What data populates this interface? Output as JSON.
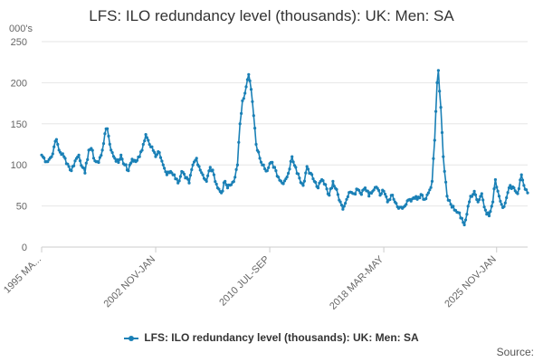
{
  "chart_data": {
    "type": "line",
    "title": "LFS: ILO redundancy level (thousands): UK: Men: SA",
    "ylabel": "000's",
    "xlabel": "",
    "ylim": [
      0,
      250
    ],
    "y_ticks": [
      0,
      50,
      100,
      150,
      200,
      250
    ],
    "x_tick_labels": [
      "1995 MA...",
      "2002 NOV-JAN",
      "2010 JUL-SEP",
      "2018 MAR-MAY",
      "2025 NOV-JAN"
    ],
    "x_tick_index": [
      0,
      92,
      184,
      276,
      367
    ],
    "legend_position": "bottom",
    "series_color": "#1a80b6",
    "source_label": "Source:",
    "series": [
      {
        "name": "LFS: ILO redundancy level (thousands): UK: Men: SA",
        "keypoints": [
          [
            0,
            112
          ],
          [
            4,
            104
          ],
          [
            8,
            110
          ],
          [
            10,
            122
          ],
          [
            12,
            131
          ],
          [
            14,
            118
          ],
          [
            18,
            110
          ],
          [
            22,
            98
          ],
          [
            24,
            93
          ],
          [
            27,
            105
          ],
          [
            30,
            112
          ],
          [
            33,
            97
          ],
          [
            35,
            90
          ],
          [
            38,
            118
          ],
          [
            40,
            120
          ],
          [
            43,
            105
          ],
          [
            46,
            103
          ],
          [
            49,
            118
          ],
          [
            51,
            138
          ],
          [
            53,
            144
          ],
          [
            56,
            118
          ],
          [
            59,
            108
          ],
          [
            62,
            103
          ],
          [
            64,
            112
          ],
          [
            67,
            100
          ],
          [
            70,
            93
          ],
          [
            73,
            107
          ],
          [
            76,
            104
          ],
          [
            79,
            110
          ],
          [
            82,
            125
          ],
          [
            84,
            137
          ],
          [
            86,
            130
          ],
          [
            89,
            122
          ],
          [
            92,
            110
          ],
          [
            95,
            115
          ],
          [
            98,
            100
          ],
          [
            101,
            88
          ],
          [
            104,
            92
          ],
          [
            107,
            88
          ],
          [
            110,
            78
          ],
          [
            113,
            92
          ],
          [
            116,
            84
          ],
          [
            119,
            78
          ],
          [
            122,
            100
          ],
          [
            125,
            108
          ],
          [
            127,
            98
          ],
          [
            130,
            88
          ],
          [
            133,
            80
          ],
          [
            136,
            97
          ],
          [
            139,
            88
          ],
          [
            142,
            72
          ],
          [
            145,
            66
          ],
          [
            148,
            80
          ],
          [
            150,
            72
          ],
          [
            153,
            76
          ],
          [
            156,
            85
          ],
          [
            158,
            100
          ],
          [
            160,
            150
          ],
          [
            162,
            178
          ],
          [
            165,
            195
          ],
          [
            167,
            210
          ],
          [
            169,
            192
          ],
          [
            171,
            160
          ],
          [
            173,
            125
          ],
          [
            176,
            108
          ],
          [
            179,
            100
          ],
          [
            182,
            93
          ],
          [
            185,
            103
          ],
          [
            188,
            97
          ],
          [
            191,
            85
          ],
          [
            194,
            78
          ],
          [
            197,
            83
          ],
          [
            200,
            95
          ],
          [
            202,
            110
          ],
          [
            205,
            97
          ],
          [
            208,
            84
          ],
          [
            211,
            75
          ],
          [
            214,
            98
          ],
          [
            217,
            90
          ],
          [
            220,
            80
          ],
          [
            223,
            72
          ],
          [
            226,
            82
          ],
          [
            229,
            76
          ],
          [
            232,
            63
          ],
          [
            235,
            80
          ],
          [
            238,
            70
          ],
          [
            241,
            55
          ],
          [
            243,
            46
          ],
          [
            246,
            58
          ],
          [
            249,
            67
          ],
          [
            252,
            65
          ],
          [
            255,
            70
          ],
          [
            258,
            64
          ],
          [
            261,
            72
          ],
          [
            264,
            62
          ],
          [
            267,
            68
          ],
          [
            270,
            73
          ],
          [
            273,
            63
          ],
          [
            276,
            68
          ],
          [
            279,
            55
          ],
          [
            282,
            63
          ],
          [
            285,
            55
          ],
          [
            288,
            47
          ],
          [
            291,
            47
          ],
          [
            294,
            52
          ],
          [
            297,
            58
          ],
          [
            300,
            60
          ],
          [
            303,
            58
          ],
          [
            306,
            64
          ],
          [
            309,
            58
          ],
          [
            312,
            66
          ],
          [
            315,
            80
          ],
          [
            317,
            130
          ],
          [
            319,
            200
          ],
          [
            320,
            215
          ],
          [
            322,
            170
          ],
          [
            324,
            110
          ],
          [
            327,
            62
          ],
          [
            330,
            52
          ],
          [
            333,
            45
          ],
          [
            336,
            42
          ],
          [
            339,
            35
          ],
          [
            341,
            27
          ],
          [
            343,
            40
          ],
          [
            346,
            62
          ],
          [
            349,
            68
          ],
          [
            352,
            55
          ],
          [
            355,
            65
          ],
          [
            358,
            45
          ],
          [
            361,
            38
          ],
          [
            364,
            55
          ],
          [
            366,
            82
          ],
          [
            369,
            62
          ],
          [
            372,
            48
          ],
          [
            375,
            60
          ],
          [
            378,
            75
          ],
          [
            381,
            72
          ],
          [
            384,
            65
          ],
          [
            387,
            88
          ],
          [
            389,
            75
          ],
          [
            392,
            66
          ]
        ]
      }
    ]
  }
}
